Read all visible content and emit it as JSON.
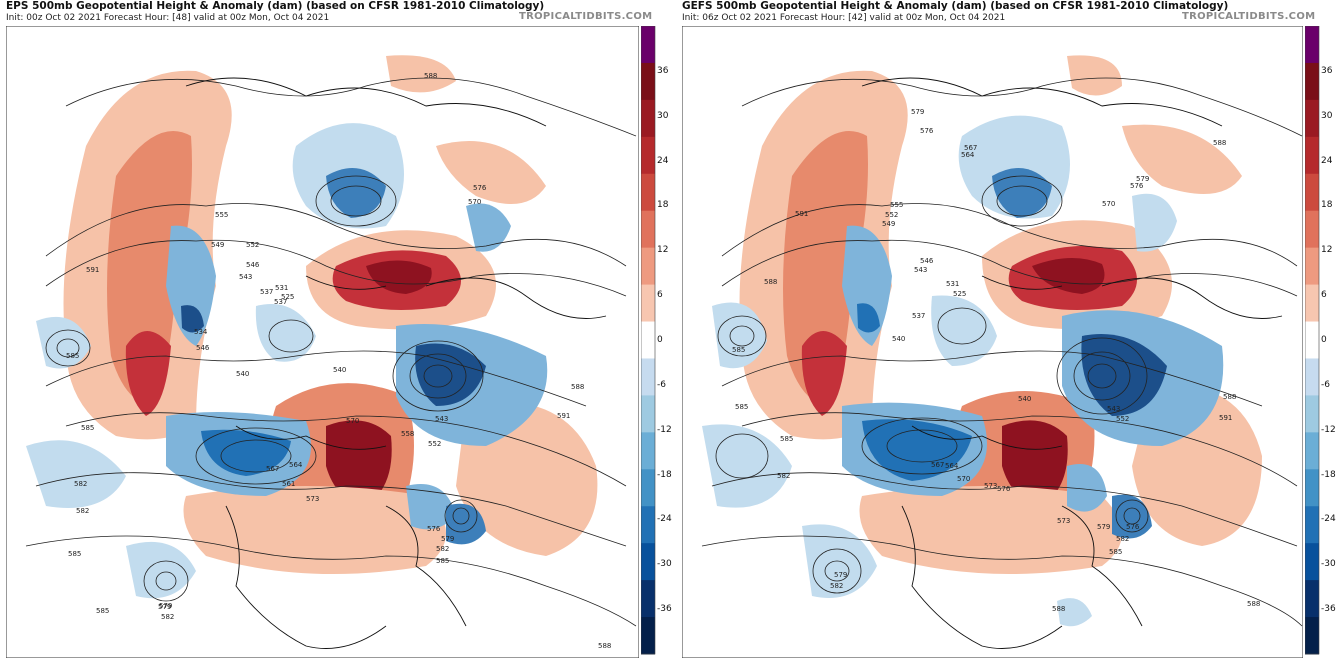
{
  "panels": [
    {
      "title": "EPS 500mb Geopotential Height & Anomaly (dam) (based on CFSR 1981-2010 Climatology)",
      "subtitle": "Init: 00z Oct 02 2021   Forecast Hour: [48]   valid at 00z Mon, Oct 04 2021",
      "watermark": "TROPICALTIDBITS.COM"
    },
    {
      "title": "GEFS 500mb Geopotential Height & Anomaly (dam) (based on CFSR 1981-2010 Climatology)",
      "subtitle": "Init: 06z Oct 02 2021   Forecast Hour: [42]   valid at 00z Mon, Oct 04 2021",
      "watermark": "TROPICALTIDBITS.COM"
    }
  ],
  "colorbar": {
    "labels": [
      "36",
      "30",
      "24",
      "18",
      "12",
      "6",
      "0",
      "-6",
      "-12",
      "-18",
      "-24",
      "-30",
      "-36"
    ],
    "colors": [
      "#6a006a",
      "#7a0f18",
      "#9a1a22",
      "#b52a2c",
      "#cc4a3e",
      "#e0725c",
      "#ee9a80",
      "#f7c6b0",
      "#ffffff",
      "#c6dbef",
      "#9ecae1",
      "#6baed6",
      "#4292c6",
      "#2171b5",
      "#08519c",
      "#08306b",
      "#04204a"
    ]
  },
  "map_colors": {
    "pos_light": "#f6c2a8",
    "pos_mid": "#e78a6c",
    "pos_strong": "#c4313a",
    "pos_max": "#8e1220",
    "neg_light": "#c2dcee",
    "neg_mid": "#7fb4da",
    "neg_strong": "#3d7fba",
    "neg_max": "#1c4f8a",
    "coast": "#111111",
    "contour": "#222222"
  },
  "contour_labels_left": [
    "588",
    "585",
    "591",
    "582",
    "579",
    "555",
    "549",
    "552",
    "546",
    "543",
    "537",
    "540",
    "525",
    "534",
    "546",
    "558",
    "570",
    "576",
    "561",
    "567",
    "564",
    "573",
    "582",
    "588",
    "591",
    "570",
    "576",
    "579",
    "582",
    "585",
    "588",
    "585",
    "585",
    "582",
    "579",
    "585",
    "540",
    "543",
    "531",
    "537",
    "552"
  ],
  "contour_labels_right": [
    "585",
    "579",
    "576",
    "567",
    "564",
    "591",
    "588",
    "555",
    "552",
    "549",
    "546",
    "543",
    "537",
    "531",
    "525",
    "540",
    "540",
    "543",
    "552",
    "585",
    "588",
    "591",
    "582",
    "579",
    "576",
    "573",
    "570",
    "576",
    "579",
    "582",
    "585",
    "588",
    "585",
    "582",
    "579",
    "564",
    "567",
    "570",
    "573",
    "576",
    "588",
    "588"
  ]
}
